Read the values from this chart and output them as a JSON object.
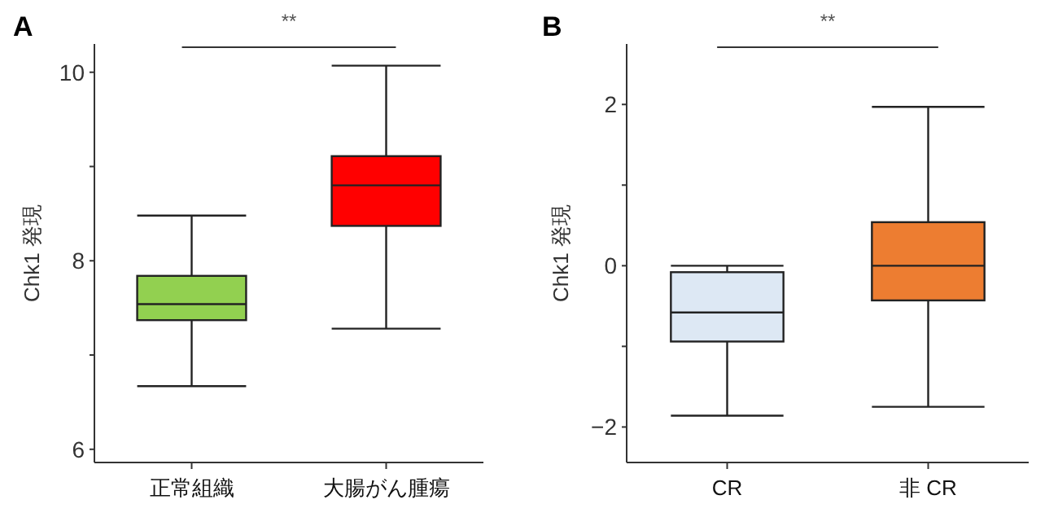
{
  "chart_data": [
    {
      "type": "box",
      "title": "A",
      "ylabel": "Chk1 発現",
      "categories": [
        "正常組織",
        "大腸がん腫瘍"
      ],
      "ylim": [
        5.86,
        10.3
      ],
      "yticks": [
        6,
        {
          "value": 7,
          "label": null
        },
        8,
        {
          "value": 9,
          "label": null
        },
        10
      ],
      "colors": [
        "#92d050",
        "#ff0000"
      ],
      "boxes": [
        {
          "low": 6.67,
          "q1": 7.37,
          "median": 7.54,
          "q3": 7.84,
          "high": 8.48
        },
        {
          "low": 7.28,
          "q1": 8.37,
          "median": 8.8,
          "q3": 9.11,
          "high": 10.07
        }
      ],
      "annotations": [
        "**"
      ]
    },
    {
      "type": "box",
      "title": "B",
      "ylabel": "Chk1 発現",
      "categories": [
        "CR",
        "非 CR"
      ],
      "ylim": [
        -2.44,
        2.75
      ],
      "yticks": [
        -2,
        {
          "value": -1,
          "label": null
        },
        0,
        {
          "value": 1,
          "label": null
        },
        2
      ],
      "colors": [
        "#dde8f4",
        "#ed7d31"
      ],
      "boxes": [
        {
          "low": -1.86,
          "q1": -0.94,
          "median": -0.58,
          "q3": -0.08,
          "high": 0.0
        },
        {
          "low": -1.75,
          "q1": -0.43,
          "median": 0.0,
          "q3": 0.54,
          "high": 1.97
        }
      ],
      "annotations": [
        "**"
      ]
    }
  ]
}
